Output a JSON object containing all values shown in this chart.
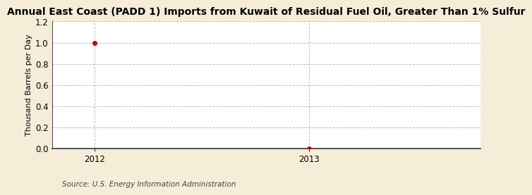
{
  "title": "Annual East Coast (PADD 1) Imports from Kuwait of Residual Fuel Oil, Greater Than 1% Sulfur",
  "ylabel": "Thousand Barrels per Day",
  "source": "Source: U.S. Energy Information Administration",
  "x_data": [
    2012,
    2013
  ],
  "y_data": [
    1.0,
    0.0
  ],
  "xlim": [
    2011.8,
    2013.8
  ],
  "ylim": [
    0.0,
    1.2
  ],
  "yticks": [
    0.0,
    0.2,
    0.4,
    0.6,
    0.8,
    1.0,
    1.2
  ],
  "xticks": [
    2012,
    2013
  ],
  "marker_color": "#cc0000",
  "grid_color": "#bbbbbb",
  "fig_bg_color": "#f5edd8",
  "plot_bg_color": "#ffffff",
  "title_fontsize": 10.0,
  "label_fontsize": 8.0,
  "tick_fontsize": 8.5,
  "source_fontsize": 7.5
}
